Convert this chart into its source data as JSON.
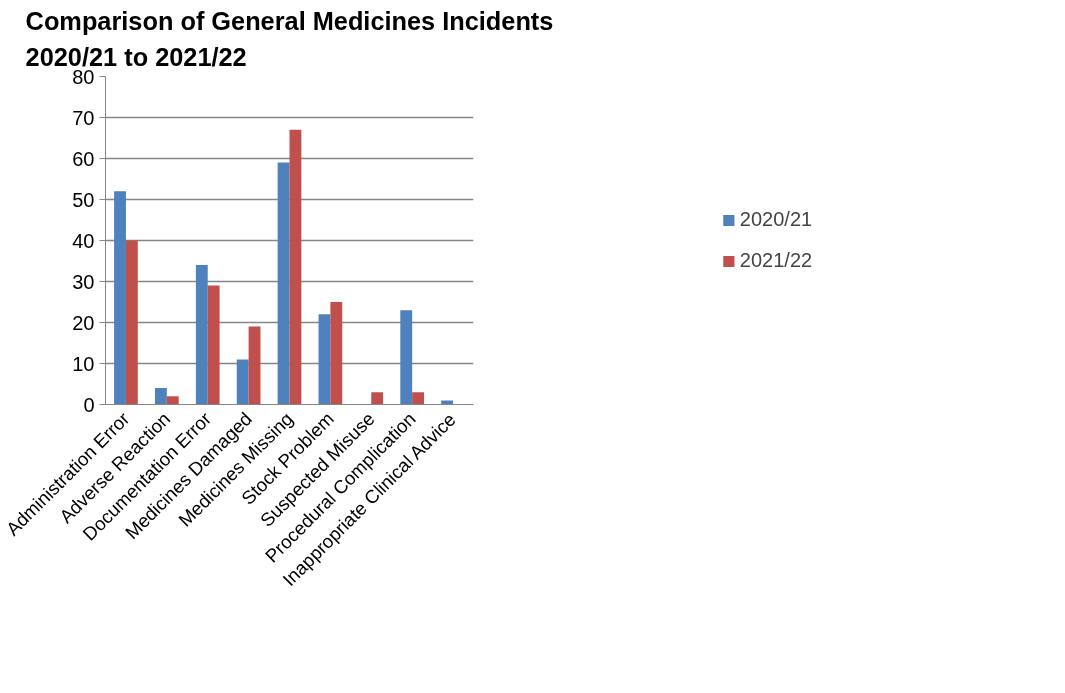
{
  "chart_data": {
    "type": "bar",
    "title": "Comparison of General Medicines Incidents 2020/21 to 2021/22",
    "categories": [
      "Administration Error",
      "Adverse Reaction",
      "Documentation Error",
      "Medicines Damaged",
      "Medicines Missing",
      "Stock Problem",
      "Suspected Misuse",
      "Procedural Complication",
      "Inappropriate Clinical Advice"
    ],
    "series": [
      {
        "name": "2020/21",
        "color": "#4f81bd",
        "values": [
          52,
          4,
          34,
          11,
          59,
          22,
          0,
          23,
          1
        ]
      },
      {
        "name": "2021/22",
        "color": "#c0504d",
        "values": [
          40,
          2,
          29,
          19,
          67,
          25,
          3,
          3,
          0
        ]
      }
    ],
    "ylim": [
      0,
      80
    ],
    "yticks": [
      0,
      10,
      20,
      30,
      40,
      50,
      60,
      70,
      80
    ],
    "grid": "y",
    "legend": "right"
  }
}
